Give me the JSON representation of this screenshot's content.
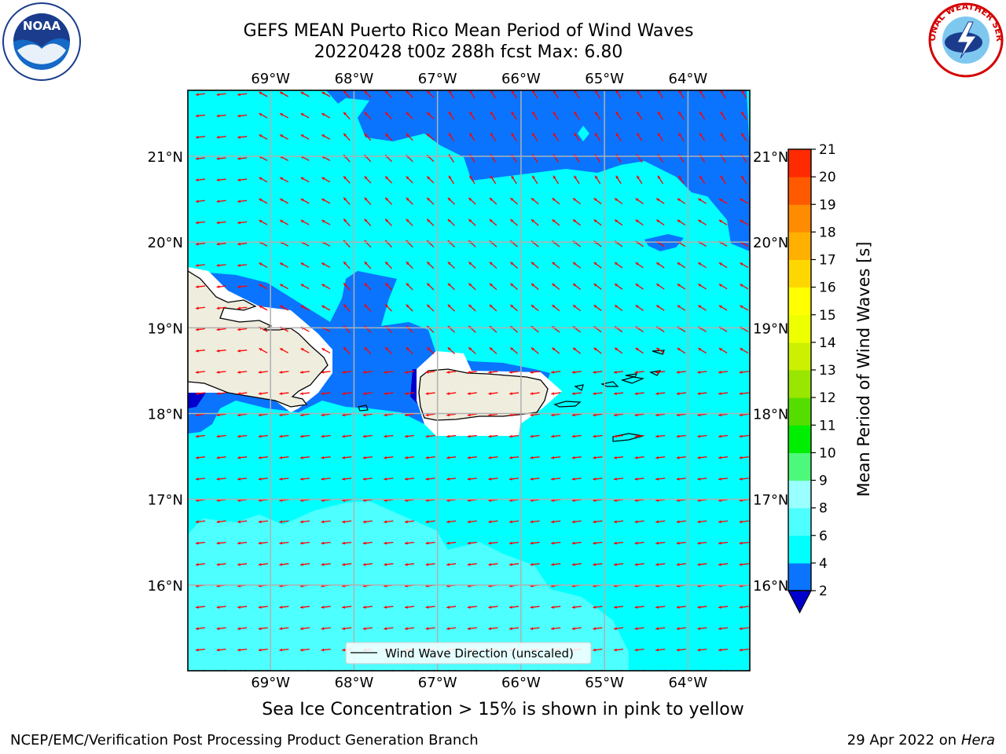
{
  "title": {
    "line1": "GEFS MEAN Puerto Rico Mean Period of Wind Waves",
    "line2": "20220428 t00z 288h fcst   Max: 6.80"
  },
  "map": {
    "lon_labels": [
      "69°W",
      "68°W",
      "67°W",
      "66°W",
      "65°W",
      "64°W"
    ],
    "lat_labels": [
      "21°N",
      "20°N",
      "19°N",
      "18°N",
      "17°N",
      "16°N"
    ],
    "lon_range": [
      -69.99,
      -63.26
    ],
    "lat_range": [
      15.0,
      21.77
    ],
    "legend_label": "Wind Wave Direction (unscaled)",
    "vector_color": "#ff0000",
    "land_color": "#efedde",
    "ocean_shades": {
      "2-4": "#0a74ff",
      "4-6": "#00ffff",
      "6-8": "#4dffff"
    }
  },
  "colorbar": {
    "label": "Mean Period of Wind Waves [s]",
    "ticks": [
      "2",
      "4",
      "6",
      "8",
      "9",
      "10",
      "11",
      "12",
      "13",
      "14",
      "15",
      "16",
      "17",
      "18",
      "19",
      "20",
      "21"
    ],
    "colors": [
      "#0a74ff",
      "#00ffff",
      "#4dffff",
      "#99ffff",
      "#4df97a",
      "#00ee00",
      "#55dd00",
      "#99e600",
      "#ccf000",
      "#eeff00",
      "#ffff00",
      "#ffd700",
      "#ffb000",
      "#ff8c00",
      "#ff5a00",
      "#ff2a00",
      "#ff0000"
    ],
    "extend_color": "#0000cc"
  },
  "notes": {
    "ice": "Sea Ice Concentration > 15% is shown in pink to yellow",
    "branch": "NCEP/EMC/Verification Post Processing Product Generation Branch",
    "date": "29 Apr 2022 on ",
    "host": "Hera"
  },
  "logos": {
    "noaa_text": "NOAA",
    "nws_text": "NATIONAL WEATHER SERVICE"
  }
}
